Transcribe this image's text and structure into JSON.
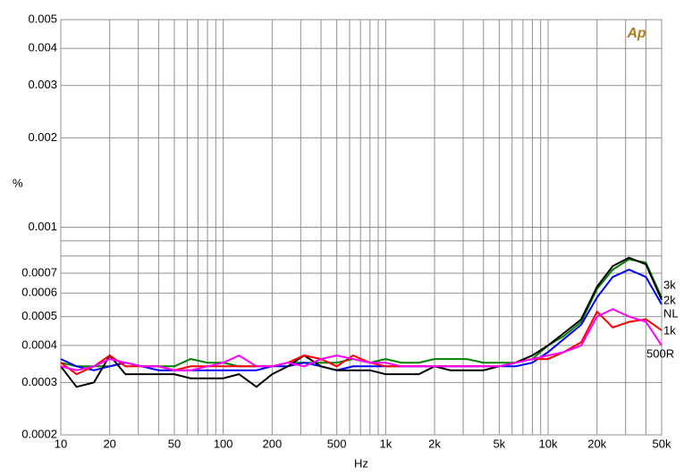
{
  "chart_data": {
    "type": "line",
    "xlabel": "Hz",
    "ylabel": "%",
    "logo": "Ap",
    "xscale": "log",
    "yscale": "log",
    "grid": true,
    "xlim": [
      10,
      50000
    ],
    "ylim": [
      0.0002,
      0.005
    ],
    "xticks": [
      10,
      20,
      50,
      100,
      200,
      500,
      {
        "value": 1000,
        "label": "1k"
      },
      {
        "value": 2000,
        "label": "2k"
      },
      {
        "value": 5000,
        "label": "5k"
      },
      {
        "value": 10000,
        "label": "10k"
      },
      {
        "value": 20000,
        "label": "20k"
      },
      {
        "value": 50000,
        "label": "50k"
      }
    ],
    "xminor_ticks": [
      30,
      40,
      60,
      70,
      80,
      90,
      300,
      400,
      600,
      700,
      800,
      900,
      3000,
      4000,
      6000,
      7000,
      8000,
      9000,
      30000,
      40000
    ],
    "yticks": [
      0.005,
      0.004,
      0.003,
      0.002,
      0.001,
      0.0007,
      0.0006,
      0.0005,
      0.0004,
      0.0003,
      0.0002
    ],
    "yminor_ticks": [
      0.0009,
      0.0008
    ],
    "x": [
      10,
      12.5,
      16,
      20,
      25,
      31.5,
      40,
      50,
      63,
      80,
      100,
      125,
      160,
      200,
      250,
      315,
      400,
      500,
      630,
      800,
      1000,
      1250,
      1600,
      2000,
      2500,
      3150,
      4000,
      5000,
      6300,
      8000,
      10000,
      12500,
      16000,
      20000,
      25000,
      31500,
      40000,
      50000
    ],
    "series": [
      {
        "name": "3k",
        "color": "#008000",
        "values": [
          0.00035,
          0.00034,
          0.00034,
          0.00034,
          0.00035,
          0.00034,
          0.00034,
          0.00034,
          0.00036,
          0.00035,
          0.00035,
          0.00034,
          0.00034,
          0.00034,
          0.00035,
          0.00035,
          0.00035,
          0.00035,
          0.00036,
          0.00035,
          0.00036,
          0.00035,
          0.00035,
          0.00036,
          0.00036,
          0.00036,
          0.00035,
          0.00035,
          0.00035,
          0.00036,
          0.0004,
          0.00043,
          0.00048,
          0.00062,
          0.00072,
          0.00078,
          0.00076,
          0.00058
        ]
      },
      {
        "name": "2k",
        "color": "#0000ff",
        "values": [
          0.00036,
          0.00034,
          0.00033,
          0.00034,
          0.00035,
          0.00034,
          0.00033,
          0.00033,
          0.00033,
          0.00033,
          0.00033,
          0.00033,
          0.00033,
          0.00034,
          0.00034,
          0.00035,
          0.00034,
          0.00033,
          0.00034,
          0.00034,
          0.00034,
          0.00034,
          0.00034,
          0.00034,
          0.00034,
          0.00034,
          0.00034,
          0.00034,
          0.00034,
          0.00035,
          0.00038,
          0.00042,
          0.00047,
          0.00058,
          0.00068,
          0.00072,
          0.00068,
          0.00055
        ]
      },
      {
        "name": "NL",
        "color": "#000000",
        "values": [
          0.00034,
          0.00029,
          0.0003,
          0.00037,
          0.00032,
          0.00032,
          0.00032,
          0.00032,
          0.00031,
          0.00031,
          0.00031,
          0.00032,
          0.00029,
          0.00032,
          0.00034,
          0.00037,
          0.00034,
          0.00033,
          0.00033,
          0.00033,
          0.00032,
          0.00032,
          0.00032,
          0.00034,
          0.00033,
          0.00033,
          0.00033,
          0.00034,
          0.00035,
          0.00037,
          0.0004,
          0.00044,
          0.00049,
          0.00063,
          0.00074,
          0.00079,
          0.00075,
          0.00057
        ]
      },
      {
        "name": "1k",
        "color": "#ff0000",
        "values": [
          0.00035,
          0.00032,
          0.00034,
          0.00037,
          0.00034,
          0.00034,
          0.00034,
          0.00033,
          0.00034,
          0.00034,
          0.00034,
          0.00034,
          0.00034,
          0.00034,
          0.00035,
          0.00037,
          0.00036,
          0.00034,
          0.00037,
          0.00035,
          0.00034,
          0.00034,
          0.00034,
          0.00034,
          0.00034,
          0.00034,
          0.00034,
          0.00034,
          0.00035,
          0.00036,
          0.00036,
          0.00038,
          0.00041,
          0.00052,
          0.00046,
          0.00048,
          0.00049,
          0.00045
        ]
      },
      {
        "name": "500R",
        "color": "#ff00ff",
        "values": [
          0.00034,
          0.00033,
          0.00034,
          0.00036,
          0.00035,
          0.00034,
          0.00034,
          0.00033,
          0.00033,
          0.00034,
          0.00035,
          0.00037,
          0.00034,
          0.00034,
          0.00035,
          0.00034,
          0.00036,
          0.00037,
          0.00036,
          0.00035,
          0.00035,
          0.00034,
          0.00034,
          0.00034,
          0.00034,
          0.00034,
          0.00034,
          0.00034,
          0.00035,
          0.00036,
          0.00037,
          0.00038,
          0.0004,
          0.0005,
          0.00053,
          0.0005,
          0.00048,
          0.0004
        ]
      }
    ]
  }
}
